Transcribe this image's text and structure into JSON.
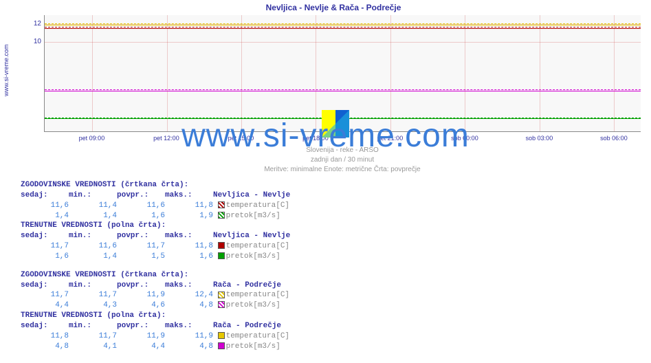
{
  "title": "Nevljica - Nevlje & Rača - Podrečje",
  "side_label": "www.si-vreme.com",
  "watermark": "www.si-vreme.com",
  "under_lines": [
    "Slovenija - reke - ARSO",
    "zadnji dan / 30 minut",
    "Meritve: minimalne  Enote: metrične  Črta: povprečje"
  ],
  "chart": {
    "type": "line",
    "background_color": "#f8f8f8",
    "grid_color": "rgba(200,60,60,0.25)",
    "ylim": [
      0,
      13
    ],
    "ytick_values": [
      10,
      12
    ],
    "x_ticks": [
      "pet 09:00",
      "pet 12:00",
      "pet 15:00",
      "pet 18:00",
      "pet 21:00",
      "sob 00:00",
      "sob 03:00",
      "sob 06:00"
    ],
    "x_tick_positions_pct": [
      8,
      20.5,
      33,
      45.5,
      58,
      70.5,
      83,
      95.5
    ],
    "series": [
      {
        "name": "raca-temp-hist",
        "color": "#e6c800",
        "style": "dashed",
        "y_value_pct": 7,
        "width": 1
      },
      {
        "name": "raca-temp-curr",
        "color": "#e6c800",
        "style": "solid",
        "y_value_pct": 8,
        "width": 1
      },
      {
        "name": "nevl-temp-hist",
        "color": "#b00000",
        "style": "dashed",
        "y_value_pct": 10,
        "width": 1
      },
      {
        "name": "nevl-temp-curr",
        "color": "#b00000",
        "style": "solid",
        "y_value_pct": 11,
        "width": 1
      },
      {
        "name": "raca-flow-hist",
        "color": "#d000d0",
        "style": "dashed",
        "y_value_pct": 64,
        "width": 1
      },
      {
        "name": "raca-flow-curr",
        "color": "#d000d0",
        "style": "solid",
        "y_value_pct": 65,
        "width": 1
      },
      {
        "name": "nevl-flow-hist",
        "color": "#00a000",
        "style": "dashed",
        "y_value_pct": 88,
        "width": 1
      },
      {
        "name": "nevl-flow-curr",
        "color": "#00a000",
        "style": "solid",
        "y_value_pct": 89,
        "width": 1
      }
    ]
  },
  "headers": {
    "sedaj": "sedaj:",
    "min": "min.:",
    "povpr": "povpr.:",
    "maks": "maks.:"
  },
  "sections": [
    {
      "title": "ZGODOVINSKE VREDNOSTI (črtkana črta):",
      "location": "Nevljica - Nevlje",
      "rows": [
        {
          "sedaj": "11,6",
          "min": "11,4",
          "povpr": "11,6",
          "maks": "11,8",
          "swatch": "#b00000",
          "swatch_style": "dashed",
          "metric": "temperatura[C]"
        },
        {
          "sedaj": "1,4",
          "min": "1,4",
          "povpr": "1,6",
          "maks": "1,9",
          "swatch": "#00a000",
          "swatch_style": "dashed",
          "metric": "pretok[m3/s]"
        }
      ]
    },
    {
      "title": "TRENUTNE VREDNOSTI (polna črta):",
      "location": "Nevljica - Nevlje",
      "rows": [
        {
          "sedaj": "11,7",
          "min": "11,6",
          "povpr": "11,7",
          "maks": "11,8",
          "swatch": "#b00000",
          "swatch_style": "solid",
          "metric": "temperatura[C]"
        },
        {
          "sedaj": "1,6",
          "min": "1,4",
          "povpr": "1,5",
          "maks": "1,6",
          "swatch": "#00a000",
          "swatch_style": "solid",
          "metric": "pretok[m3/s]"
        }
      ]
    },
    {
      "title": "ZGODOVINSKE VREDNOSTI (črtkana črta):",
      "location": "Rača - Podrečje",
      "rows": [
        {
          "sedaj": "11,7",
          "min": "11,7",
          "povpr": "11,9",
          "maks": "12,4",
          "swatch": "#e6c800",
          "swatch_style": "dashed",
          "metric": "temperatura[C]"
        },
        {
          "sedaj": "4,4",
          "min": "4,3",
          "povpr": "4,6",
          "maks": "4,8",
          "swatch": "#d000d0",
          "swatch_style": "dashed",
          "metric": "pretok[m3/s]"
        }
      ]
    },
    {
      "title": "TRENUTNE VREDNOSTI (polna črta):",
      "location": "Rača - Podrečje",
      "rows": [
        {
          "sedaj": "11,8",
          "min": "11,7",
          "povpr": "11,9",
          "maks": "11,9",
          "swatch": "#e6c800",
          "swatch_style": "solid",
          "metric": "temperatura[C]"
        },
        {
          "sedaj": "4,8",
          "min": "4,1",
          "povpr": "4,4",
          "maks": "4,8",
          "swatch": "#d000d0",
          "swatch_style": "solid",
          "metric": "pretok[m3/s]"
        }
      ]
    }
  ]
}
